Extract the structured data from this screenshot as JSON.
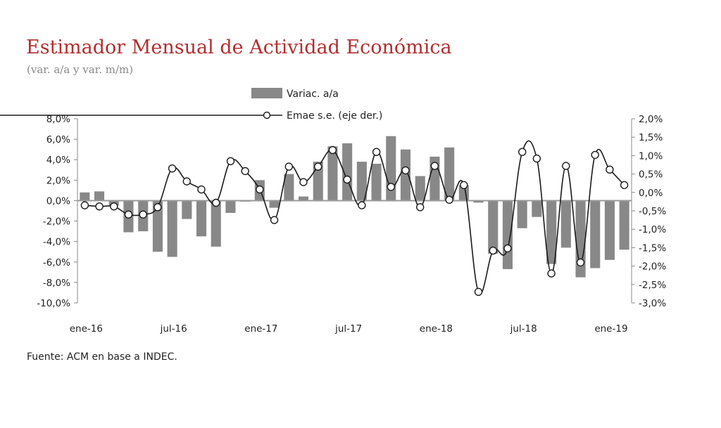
{
  "title": "Estimador Mensual de Actividad Económica",
  "subtitle": "(var. a/a y  var. m/m)",
  "source": "Fuente: ACM en base a INDEC.",
  "colors": {
    "title": "#b22e2e",
    "bars": "#888888",
    "line": "#1a1a1a",
    "markers": "#ffffff"
  },
  "chart_data": {
    "type": "bar",
    "title": "Estimador Mensual de Actividad Económica",
    "legend_position": "top-center",
    "grid": false,
    "series": [
      {
        "name": "Variac. a/a",
        "type": "bar",
        "axis": "left",
        "values": [
          0.8,
          0.9,
          -0.5,
          -3.1,
          -3.0,
          -5.0,
          -5.5,
          -1.8,
          -3.5,
          -4.5,
          -1.2,
          -0.1,
          2.0,
          -0.7,
          2.6,
          0.4,
          3.8,
          5.3,
          5.6,
          3.8,
          3.6,
          6.3,
          5.0,
          2.4,
          4.3,
          5.2,
          1.5,
          -0.2,
          -5.2,
          -6.7,
          -2.7,
          -1.6,
          -6.2,
          -4.6,
          -7.5,
          -6.6,
          -5.8,
          -4.8
        ]
      },
      {
        "name": "Emae s.e. (eje der.)",
        "type": "line",
        "axis": "right",
        "values": [
          -0.35,
          -0.38,
          -0.38,
          -0.6,
          -0.6,
          -0.4,
          0.65,
          0.3,
          0.08,
          -0.28,
          0.85,
          0.58,
          0.08,
          -0.75,
          0.7,
          0.28,
          0.7,
          1.15,
          0.35,
          -0.35,
          1.1,
          0.15,
          0.6,
          -0.4,
          0.72,
          -0.2,
          0.2,
          -2.7,
          -1.58,
          -1.52,
          1.1,
          0.92,
          -2.2,
          0.72,
          -1.9,
          1.02,
          0.62,
          0.2
        ]
      }
    ],
    "x_labels": [
      {
        "index": 0,
        "label": "ene-16"
      },
      {
        "index": 6,
        "label": "jul-16"
      },
      {
        "index": 12,
        "label": "ene-17"
      },
      {
        "index": 18,
        "label": "jul-17"
      },
      {
        "index": 24,
        "label": "ene-18"
      },
      {
        "index": 30,
        "label": "jul-18"
      },
      {
        "index": 36,
        "label": "ene-19"
      }
    ],
    "y_left": {
      "min": -10,
      "max": 8,
      "step": 2,
      "tick_labels": [
        "8,0%",
        "6,0%",
        "4,0%",
        "2,0%",
        "0,0%",
        "-2,0%",
        "-4,0%",
        "-6,0%",
        "-8,0%",
        "-10,0%"
      ]
    },
    "y_right": {
      "min": -3,
      "max": 2,
      "step": 0.5,
      "tick_labels": [
        "2,0%",
        "1,5%",
        "1,0%",
        "0,5%",
        "0,0%",
        "-0,5%",
        "-1,0%",
        "-1,5%",
        "-2,0%",
        "-2,5%",
        "-3,0%"
      ]
    }
  }
}
